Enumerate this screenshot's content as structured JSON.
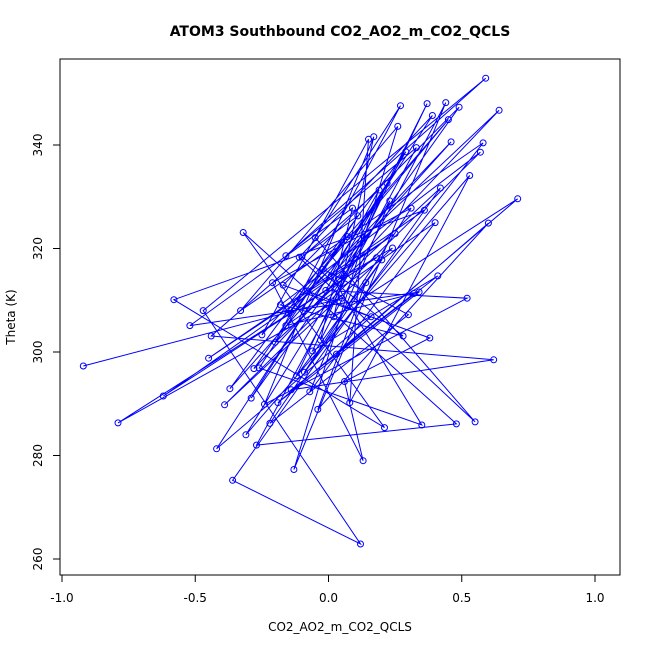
{
  "chart_data": {
    "type": "line",
    "title": "ATOM3 Southbound CO2_AO2_m_CO2_QCLS",
    "xlabel": "CO2_AO2_m_CO2_QCLS",
    "ylabel": "Theta (K)",
    "xlim": [
      -1.0,
      1.05
    ],
    "ylim": [
      260,
      353
    ],
    "x_ticks": [
      -1.0,
      -0.5,
      0.0,
      0.5,
      1.0
    ],
    "x_tick_labels": [
      "-1.0",
      "-0.5",
      "0.0",
      "0.5",
      "1.0"
    ],
    "y_ticks": [
      260,
      280,
      300,
      320,
      340
    ],
    "y_tick_labels": [
      "260",
      "280",
      "300",
      "320",
      "340"
    ],
    "grid": false,
    "series_color": "#0000ff",
    "series": [
      {
        "name": "",
        "x": [
          -0.92,
          0.05,
          -0.79,
          0.18,
          -0.62,
          0.25,
          -0.45,
          0.36,
          -0.58,
          0.21,
          -0.32,
          0.48,
          -0.27,
          0.33,
          -0.16,
          0.59,
          -0.47,
          0.12,
          -0.36,
          0.42,
          -0.2,
          0.27,
          -0.05,
          0.55,
          -0.11,
          0.39,
          -0.42,
          0.16,
          -0.08,
          0.64,
          -0.28,
          0.07,
          -0.15,
          0.46,
          -0.37,
          0.29,
          -0.01,
          0.52,
          -0.24,
          0.17,
          0.02,
          0.71,
          -0.19,
          0.34,
          -0.52,
          0.09,
          -0.03,
          0.44,
          -0.13,
          0.26,
          -0.33,
          0.58,
          -0.09,
          0.31,
          -0.21,
          0.13,
          0.06,
          0.38,
          -0.17,
          0.49,
          -0.29,
          0.22,
          -0.06,
          0.41,
          -0.14,
          0.62,
          -0.44,
          0.19,
          0.01,
          0.35,
          -0.26,
          0.11,
          -0.1,
          0.28,
          -0.18,
          0.57,
          -0.39,
          0.24,
          0.04,
          0.37,
          -0.12,
          0.2,
          -0.22,
          0.3,
          -0.02,
          0.45,
          -0.25,
          0.15,
          0.08,
          0.53,
          -0.31,
          0.23,
          -0.07,
          0.4,
          -0.16,
          0.32,
          0.03,
          0.6,
          -0.04,
          0.14
        ],
        "y": [
          297.3,
          310.4,
          286.3,
          318.2,
          291.5,
          322.9,
          298.8,
          327.4,
          310.1,
          285.4,
          323.1,
          286.1,
          282.0,
          339.5,
          318.6,
          352.9,
          308.0,
          262.9,
          275.2,
          331.7,
          301.9,
          347.6,
          322.1,
          286.5,
          318.3,
          345.7,
          281.3,
          306.8,
          311.8,
          346.7,
          296.8,
          322.3,
          307.5,
          340.6,
          292.9,
          338.7,
          311.9,
          310.4,
          289.9,
          341.6,
          306.8,
          329.6,
          290.2,
          311.6,
          305.1,
          327.8,
          302.3,
          348.2,
          277.3,
          343.6,
          308.0,
          340.4,
          296.1,
          327.8,
          313.4,
          279.0,
          294.3,
          302.7,
          312.9,
          347.3,
          291.1,
          332.6,
          300.2,
          314.7,
          292.7,
          298.5,
          303.1,
          331.3,
          314.7,
          285.9,
          296.9,
          326.3,
          318.4,
          303.1,
          309.1,
          338.6,
          289.8,
          320.1,
          314.1,
          348.0,
          295.4,
          317.8,
          286.2,
          307.2,
          316.0,
          344.9,
          303.3,
          341.1,
          290.2,
          334.1,
          284.0,
          329.2,
          292.3,
          325.0,
          305.1,
          311.3,
          299.6,
          324.9,
          288.9,
          313.4
        ]
      }
    ]
  }
}
